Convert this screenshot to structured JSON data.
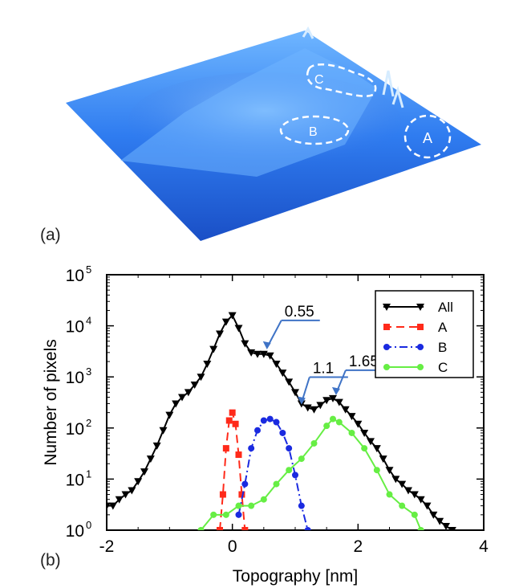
{
  "panel_a": {
    "label": "(a)",
    "regions": [
      {
        "name": "A"
      },
      {
        "name": "B"
      },
      {
        "name": "C"
      }
    ]
  },
  "panel_b": {
    "label": "(b)"
  },
  "chart_data": {
    "type": "scatter",
    "xlabel": "Topography [nm]",
    "ylabel": "Number of pixels",
    "xlim": [
      -2,
      4
    ],
    "ylim": [
      1,
      100000
    ],
    "yscale": "log",
    "xticks": [
      -2,
      0,
      2,
      4
    ],
    "yticks": [
      "10^0",
      "10^1",
      "10^2",
      "10^3",
      "10^4",
      "10^5"
    ],
    "legend_position": "top-right",
    "series": [
      {
        "name": "All",
        "color": "#000000",
        "marker": "triangle-down",
        "line": "solid",
        "x": [
          -2.0,
          -1.9,
          -1.8,
          -1.7,
          -1.6,
          -1.5,
          -1.4,
          -1.3,
          -1.2,
          -1.1,
          -1.0,
          -0.9,
          -0.8,
          -0.7,
          -0.6,
          -0.5,
          -0.4,
          -0.3,
          -0.2,
          -0.1,
          0.0,
          0.1,
          0.2,
          0.3,
          0.4,
          0.5,
          0.6,
          0.7,
          0.8,
          0.9,
          1.0,
          1.1,
          1.2,
          1.3,
          1.4,
          1.5,
          1.6,
          1.7,
          1.8,
          1.9,
          2.0,
          2.1,
          2.2,
          2.3,
          2.4,
          2.5,
          2.6,
          2.7,
          2.8,
          2.9,
          3.0,
          3.1,
          3.2,
          3.3,
          3.4,
          3.5
        ],
        "y": [
          3,
          3,
          4,
          5,
          6,
          9,
          14,
          25,
          45,
          90,
          180,
          300,
          400,
          500,
          700,
          1000,
          1800,
          3500,
          7000,
          12000,
          16000,
          9000,
          4500,
          3000,
          2800,
          2800,
          2600,
          1800,
          1200,
          800,
          500,
          300,
          250,
          230,
          280,
          350,
          380,
          320,
          230,
          170,
          120,
          80,
          55,
          40,
          25,
          15,
          10,
          8,
          6,
          5,
          4,
          3,
          2,
          1.5,
          1.2,
          1
        ]
      },
      {
        "name": "A",
        "color": "#ff2a1a",
        "marker": "square",
        "line": "dashed",
        "x": [
          -0.2,
          -0.15,
          -0.1,
          -0.05,
          0.0,
          0.05,
          0.1,
          0.15,
          0.2
        ],
        "y": [
          1,
          5,
          40,
          140,
          200,
          120,
          30,
          5,
          1
        ]
      },
      {
        "name": "B",
        "color": "#1a2ae0",
        "marker": "circle",
        "line": "dash-dot",
        "x": [
          0.1,
          0.2,
          0.3,
          0.4,
          0.5,
          0.6,
          0.7,
          0.8,
          0.9,
          1.0,
          1.1,
          1.2
        ],
        "y": [
          2,
          8,
          40,
          90,
          140,
          150,
          130,
          80,
          40,
          12,
          3,
          1
        ]
      },
      {
        "name": "C",
        "color": "#66ee44",
        "marker": "circle",
        "line": "solid",
        "x": [
          -0.5,
          -0.3,
          -0.1,
          0.1,
          0.3,
          0.5,
          0.7,
          0.9,
          1.1,
          1.3,
          1.5,
          1.6,
          1.7,
          1.9,
          2.1,
          2.3,
          2.5,
          2.7,
          2.9,
          3.0
        ],
        "y": [
          1,
          2,
          2,
          3,
          3,
          4,
          8,
          15,
          25,
          50,
          110,
          150,
          130,
          80,
          40,
          15,
          5,
          3,
          2,
          1
        ]
      }
    ],
    "annotations": [
      {
        "text": "0.55",
        "x": 0.55,
        "y": 3000
      },
      {
        "text": "1.1",
        "x": 1.1,
        "y": 250
      },
      {
        "text": "1.65",
        "x": 1.65,
        "y": 380
      }
    ],
    "axis_tick_labels_x": [
      "-2",
      "0",
      "2",
      "4"
    ],
    "axis_tick_labels_y_base": "10",
    "axis_tick_labels_y_exp": [
      "0",
      "1",
      "2",
      "3",
      "4",
      "5"
    ]
  }
}
